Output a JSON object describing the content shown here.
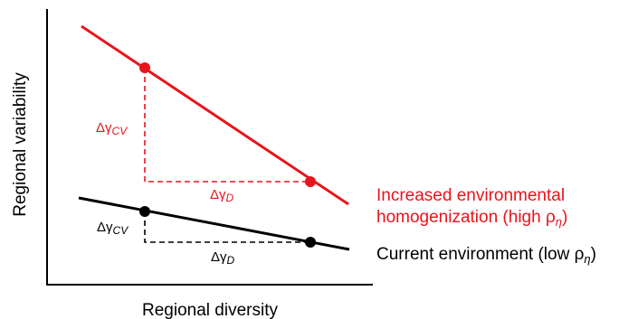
{
  "axes": {
    "xlabel": "Regional diversity",
    "ylabel": "Regional variability"
  },
  "colors": {
    "axis": "#000000",
    "high": "#e8141b",
    "low": "#000000"
  },
  "lines": {
    "high": {
      "label_line1": "Increased environmental",
      "label_line2_prefix": "homogenization (high ",
      "label_line2_suffix": ")",
      "delta_cv": "CV",
      "delta_d": "D"
    },
    "low": {
      "label_prefix": "Current environment (low ",
      "label_suffix": ")",
      "delta_cv": "CV",
      "delta_d": "D"
    }
  },
  "symbols": {
    "delta": "Δ",
    "gamma": "γ",
    "rho": "ρ",
    "eta": "η"
  }
}
